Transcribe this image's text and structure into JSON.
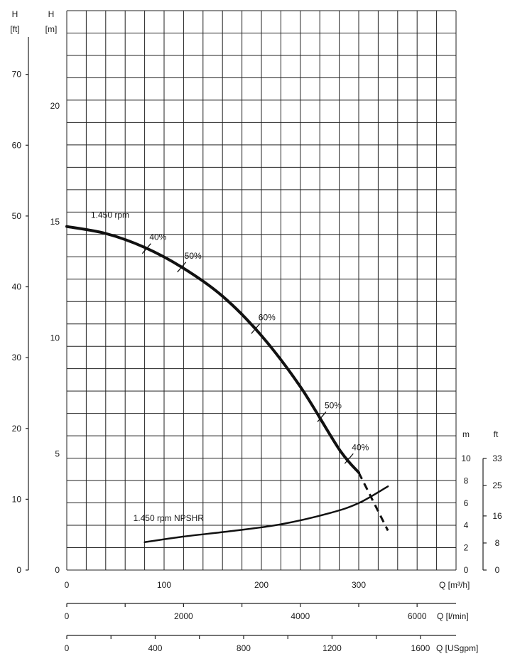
{
  "chart_data": {
    "type": "line",
    "grid": true,
    "axes": {
      "left_ft": {
        "label": "H",
        "unit": "[ft]",
        "range": [
          0,
          79
        ],
        "ticks": [
          0,
          10,
          20,
          30,
          40,
          50,
          60,
          70
        ]
      },
      "left_m": {
        "label": "H",
        "unit": "[m]",
        "range": [
          0,
          24.1
        ],
        "ticks": [
          0,
          5,
          10,
          15,
          20
        ]
      },
      "right_m": {
        "label": "m",
        "range": [
          0,
          10
        ],
        "ticks": [
          0,
          2,
          4,
          6,
          8,
          10
        ]
      },
      "right_ft": {
        "label": "ft",
        "range": [
          0,
          33
        ],
        "ticks": [
          0,
          8,
          16,
          25,
          33
        ]
      },
      "x_m3h": {
        "label": "Q [m³/h]",
        "range": [
          0,
          400
        ],
        "ticks": [
          0,
          100,
          200,
          300
        ]
      },
      "x_lmin": {
        "label": "Q [l/min]",
        "range": [
          0,
          6667
        ],
        "ticks": [
          0,
          2000,
          4000,
          6000
        ]
      },
      "x_usgpm": {
        "label": "Q [USgpm]",
        "range": [
          0,
          1761
        ],
        "ticks": [
          0,
          400,
          800,
          1200,
          1600
        ]
      }
    },
    "series": [
      {
        "name": "1.450 rpm",
        "axis": "left_m",
        "x": [
          0,
          40,
          80,
          120,
          160,
          200,
          240,
          280,
          300
        ],
        "y": [
          14.8,
          14.5,
          13.9,
          13.0,
          11.8,
          10.1,
          7.9,
          5.2,
          4.2
        ],
        "extension_x": [
          300,
          330
        ],
        "extension_y": [
          4.2,
          1.7
        ]
      },
      {
        "name": "1.450 rpm  NPSHR",
        "axis": "right_m",
        "x": [
          80,
          120,
          170,
          220,
          270,
          300,
          330
        ],
        "y": [
          2.5,
          3.0,
          3.5,
          4.1,
          5.1,
          6.0,
          7.5
        ]
      }
    ],
    "annotations": [
      {
        "text": "40%",
        "x": 82,
        "y": 13.85
      },
      {
        "text": "50%",
        "x": 118,
        "y": 13.05
      },
      {
        "text": "60%",
        "x": 194,
        "y": 10.4
      },
      {
        "text": "50%",
        "x": 262,
        "y": 6.6
      },
      {
        "text": "40%",
        "x": 290,
        "y": 4.8
      }
    ]
  }
}
